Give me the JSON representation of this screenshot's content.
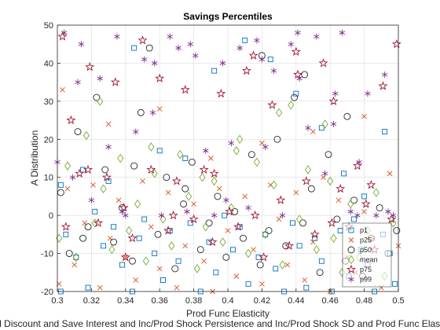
{
  "chart_data": {
    "type": "scatter",
    "title": "Savings Percentiles",
    "xlabel": "Prod Func Elasticity",
    "ylabel": "A Distribution",
    "footer_text": "and Discount and Save Interest and Inc/Prod Shock Persistence and Inc/Prod Shock SD and Prod Func Elasticity a",
    "xlim": [
      0.3,
      0.5
    ],
    "ylim": [
      -20,
      50
    ],
    "xticks": [
      "0.3",
      "0.32",
      "0.34",
      "0.36",
      "0.38",
      "0.4",
      "0.42",
      "0.44",
      "0.46",
      "0.48",
      "0.5"
    ],
    "yticks": [
      "-20",
      "-10",
      "0",
      "10",
      "20",
      "30",
      "40",
      "50"
    ],
    "grid": true,
    "legend_position": "bottom-right",
    "series": [
      {
        "name": "p1",
        "marker": "square",
        "color": "#0072BD",
        "x": [
          0.302,
          0.305,
          0.311,
          0.318,
          0.322,
          0.327,
          0.333,
          0.338,
          0.344,
          0.348,
          0.351,
          0.357,
          0.362,
          0.366,
          0.371,
          0.378,
          0.384,
          0.389,
          0.393,
          0.398,
          0.403,
          0.407,
          0.412,
          0.418,
          0.422,
          0.428,
          0.433,
          0.438,
          0.442,
          0.446,
          0.451,
          0.455,
          0.461,
          0.466,
          0.471,
          0.474,
          0.478,
          0.482,
          0.486,
          0.491,
          0.495,
          0.498,
          0.302,
          0.315,
          0.33,
          0.345,
          0.36,
          0.375,
          0.392,
          0.41,
          0.425,
          0.44,
          0.455,
          0.468,
          0.48,
          0.492
        ],
        "y": [
          -20,
          -5,
          -11,
          -19,
          1,
          -8,
          -3,
          -13,
          -20,
          -6,
          -1,
          -10,
          -17,
          -4,
          -12,
          -2,
          -20,
          -7,
          -15,
          0,
          -9,
          -3,
          -18,
          -11,
          -5,
          -14,
          -20,
          -2,
          -8,
          -19,
          -6,
          -12,
          -20,
          -4,
          -16,
          -1,
          -9,
          -13,
          -20,
          -5,
          -10,
          -18,
          8,
          12,
          9,
          44,
          17,
          15,
          38,
          46,
          41,
          32,
          23,
          11,
          5,
          22
        ]
      },
      {
        "name": "p25",
        "marker": "x",
        "color": "#D95319",
        "x": [
          0.301,
          0.306,
          0.31,
          0.316,
          0.321,
          0.325,
          0.331,
          0.336,
          0.34,
          0.346,
          0.35,
          0.355,
          0.36,
          0.365,
          0.37,
          0.375,
          0.38,
          0.386,
          0.391,
          0.395,
          0.4,
          0.405,
          0.41,
          0.415,
          0.42,
          0.425,
          0.43,
          0.435,
          0.44,
          0.445,
          0.45,
          0.456,
          0.46,
          0.465,
          0.47,
          0.475,
          0.48,
          0.485,
          0.49,
          0.495,
          0.5,
          0.303,
          0.33,
          0.36,
          0.39,
          0.42,
          0.45,
          0.48
        ],
        "y": [
          -18,
          7,
          -13,
          -2,
          8,
          -19,
          -6,
          4,
          -11,
          -17,
          9,
          -3,
          -14,
          6,
          -19,
          -8,
          3,
          -12,
          -20,
          7,
          -4,
          -16,
          5,
          -9,
          -18,
          8,
          -1,
          -13,
          6,
          -17,
          -7,
          10,
          -20,
          4,
          -11,
          -15,
          1,
          -6,
          -19,
          11,
          -8,
          33,
          24,
          28,
          15,
          19,
          22,
          26
        ]
      },
      {
        "name": "p50",
        "marker": "circle",
        "color": "#262626",
        "x": [
          0.302,
          0.307,
          0.312,
          0.318,
          0.323,
          0.328,
          0.333,
          0.338,
          0.344,
          0.349,
          0.354,
          0.359,
          0.364,
          0.369,
          0.374,
          0.379,
          0.384,
          0.389,
          0.394,
          0.399,
          0.404,
          0.409,
          0.414,
          0.419,
          0.424,
          0.429,
          0.434,
          0.439,
          0.444,
          0.449,
          0.454,
          0.459,
          0.464,
          0.469,
          0.474,
          0.479,
          0.484,
          0.489,
          0.494,
          0.499,
          0.315,
          0.345,
          0.375,
          0.42,
          0.445,
          0.47
        ],
        "y": [
          6,
          -10,
          22,
          -3,
          31,
          12,
          -7,
          2,
          -12,
          27,
          44,
          -5,
          10,
          -14,
          3,
          14,
          -9,
          -2,
          5,
          -11,
          1,
          -6,
          16,
          -13,
          -4,
          20,
          -8,
          31,
          -2,
          7,
          -15,
          16,
          -1,
          -12,
          4,
          -16,
          -6,
          2,
          -10,
          -4,
          -6,
          13,
          7,
          42,
          37,
          26
        ]
      },
      {
        "name": "mean",
        "marker": "diamond",
        "color": "#77AC30",
        "x": [
          0.301,
          0.306,
          0.311,
          0.317,
          0.322,
          0.327,
          0.332,
          0.337,
          0.342,
          0.347,
          0.352,
          0.357,
          0.362,
          0.367,
          0.372,
          0.377,
          0.382,
          0.387,
          0.392,
          0.397,
          0.402,
          0.407,
          0.412,
          0.417,
          0.422,
          0.427,
          0.432,
          0.437,
          0.442,
          0.447,
          0.452,
          0.457,
          0.462,
          0.467,
          0.472,
          0.477,
          0.482,
          0.487,
          0.492,
          0.497,
          0.325,
          0.355,
          0.385,
          0.405,
          0.43,
          0.46
        ],
        "y": [
          -6,
          13,
          -11,
          21,
          -2,
          7,
          -9,
          15,
          -4,
          3,
          -12,
          11,
          -1,
          -8,
          16,
          5,
          -14,
          -3,
          9,
          -7,
          2,
          20,
          -10,
          14,
          -5,
          8,
          -13,
          29,
          -1,
          12,
          -9,
          24,
          -6,
          -15,
          3,
          -11,
          -4,
          6,
          -16,
          -2,
          30,
          18,
          10,
          17,
          27,
          9
        ]
      },
      {
        "name": "p75",
        "marker": "pentagram",
        "color": "#A2142F",
        "x": [
          0.303,
          0.308,
          0.313,
          0.319,
          0.324,
          0.329,
          0.334,
          0.339,
          0.344,
          0.35,
          0.355,
          0.36,
          0.365,
          0.37,
          0.375,
          0.38,
          0.386,
          0.391,
          0.396,
          0.401,
          0.406,
          0.411,
          0.416,
          0.421,
          0.426,
          0.431,
          0.436,
          0.441,
          0.446,
          0.451,
          0.456,
          0.461,
          0.466,
          0.471,
          0.476,
          0.481,
          0.486,
          0.491,
          0.496,
          0.499,
          0.305,
          0.318,
          0.34,
          0.368,
          0.392,
          0.415,
          0.44,
          0.462,
          0.484
        ],
        "y": [
          47,
          25,
          11,
          39,
          -2,
          10,
          35,
          2,
          -6,
          46,
          12,
          36,
          -4,
          9,
          33,
          -1,
          12,
          -7,
          32,
          1,
          -3,
          38,
          0,
          -11,
          29,
          4,
          -8,
          37,
          9,
          -5,
          40,
          -2,
          7,
          -3,
          13,
          3,
          -9,
          34,
          -1,
          45,
          -3,
          12,
          -11,
          0,
          11,
          42,
          43,
          30,
          8
        ]
      },
      {
        "name": "p99",
        "marker": "asterisk",
        "color": "#7E2F8E",
        "x": [
          0.304,
          0.309,
          0.314,
          0.32,
          0.325,
          0.33,
          0.335,
          0.34,
          0.346,
          0.351,
          0.356,
          0.361,
          0.366,
          0.371,
          0.376,
          0.381,
          0.387,
          0.392,
          0.397,
          0.402,
          0.407,
          0.412,
          0.417,
          0.422,
          0.427,
          0.432,
          0.437,
          0.442,
          0.447,
          0.452,
          0.457,
          0.462,
          0.467,
          0.472,
          0.477,
          0.482,
          0.487,
          0.492,
          0.497,
          0.3,
          0.312,
          0.338,
          0.357,
          0.378,
          0.399,
          0.42,
          0.441,
          0.463,
          0.476,
          0.494
        ],
        "y": [
          48,
          10,
          45,
          4,
          36,
          18,
          47,
          0,
          22,
          41,
          27,
          0,
          47,
          44,
          1,
          42,
          17,
          0,
          40,
          19,
          44,
          2,
          46,
          18,
          38,
          0,
          45,
          36,
          23,
          47,
          11,
          24,
          48,
          1,
          14,
          32,
          0,
          37,
          0,
          14,
          35,
          1,
          40,
          45,
          4,
          41,
          48,
          32,
          0,
          1
        ]
      }
    ]
  }
}
